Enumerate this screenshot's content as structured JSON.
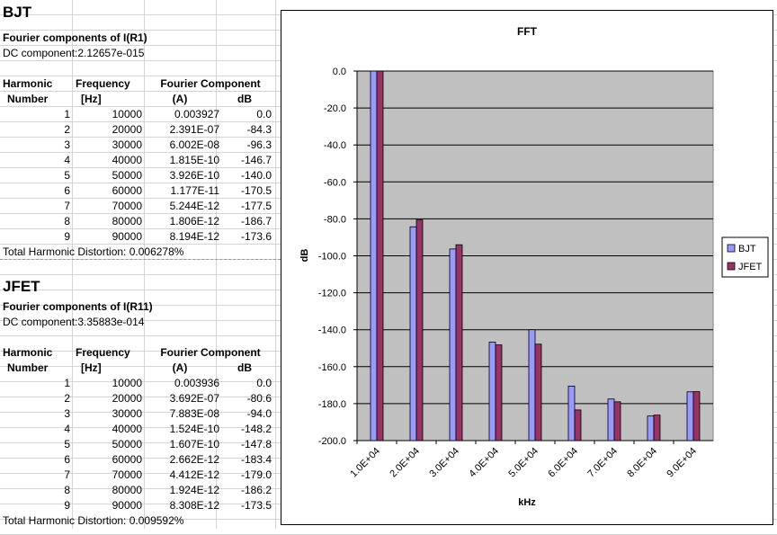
{
  "bjt": {
    "title": "BJT",
    "subtitle": "Fourier components of I(R1)",
    "dc": "DC component:2.12657e-015",
    "headers": [
      "Harmonic",
      "Frequency",
      "Fourier Component"
    ],
    "subheaders": [
      "Number",
      "[Hz]",
      "(A)",
      "dB"
    ],
    "rows": [
      [
        "1",
        "10000",
        "0.003927",
        "0.0"
      ],
      [
        "2",
        "20000",
        "2.391E-07",
        "-84.3"
      ],
      [
        "3",
        "30000",
        "6.002E-08",
        "-96.3"
      ],
      [
        "4",
        "40000",
        "1.815E-10",
        "-146.7"
      ],
      [
        "5",
        "50000",
        "3.926E-10",
        "-140.0"
      ],
      [
        "6",
        "60000",
        "1.177E-11",
        "-170.5"
      ],
      [
        "7",
        "70000",
        "5.244E-12",
        "-177.5"
      ],
      [
        "8",
        "80000",
        "1.806E-12",
        "-186.7"
      ],
      [
        "9",
        "90000",
        "8.194E-12",
        "-173.6"
      ]
    ],
    "thd": "Total Harmonic Distortion: 0.006278%"
  },
  "jfet": {
    "title": "JFET",
    "subtitle": "Fourier components of I(R11)",
    "dc": "DC component:3.35883e-014",
    "headers": [
      "Harmonic",
      "Frequency",
      "Fourier Component"
    ],
    "subheaders": [
      "Number",
      "[Hz]",
      "(A)",
      "dB"
    ],
    "rows": [
      [
        "1",
        "10000",
        "0.003936",
        "0.0"
      ],
      [
        "2",
        "20000",
        "3.692E-07",
        "-80.6"
      ],
      [
        "3",
        "30000",
        "7.883E-08",
        "-94.0"
      ],
      [
        "4",
        "40000",
        "1.524E-10",
        "-148.2"
      ],
      [
        "5",
        "50000",
        "1.607E-10",
        "-147.8"
      ],
      [
        "6",
        "60000",
        "2.662E-12",
        "-183.4"
      ],
      [
        "7",
        "70000",
        "4.412E-12",
        "-179.0"
      ],
      [
        "8",
        "80000",
        "1.924E-12",
        "-186.2"
      ],
      [
        "9",
        "90000",
        "8.308E-12",
        "-173.5"
      ]
    ],
    "thd": "Total Harmonic Distortion: 0.009592%"
  },
  "chart_data": {
    "type": "bar",
    "title": "FFT",
    "xlabel": "kHz",
    "ylabel": "dB",
    "categories": [
      "1.0E+04",
      "2.0E+04",
      "3.0E+04",
      "4.0E+04",
      "5.0E+04",
      "6.0E+04",
      "7.0E+04",
      "8.0E+04",
      "9.0E+04"
    ],
    "series": [
      {
        "name": "BJT",
        "values": [
          0.0,
          -84.3,
          -96.3,
          -146.7,
          -140.0,
          -170.5,
          -177.5,
          -186.7,
          -173.6
        ],
        "color": "#9999ff"
      },
      {
        "name": "JFET",
        "values": [
          0.0,
          -80.6,
          -94.0,
          -148.2,
          -147.8,
          -183.4,
          -179.0,
          -186.2,
          -173.5
        ],
        "color": "#993366"
      }
    ],
    "ylim": [
      -200,
      0
    ],
    "yticks": [
      "0.0",
      "-20.0",
      "-40.0",
      "-60.0",
      "-80.0",
      "-100.0",
      "-120.0",
      "-140.0",
      "-160.0",
      "-180.0",
      "-200.0"
    ],
    "ytick_values": [
      0,
      -20,
      -40,
      -60,
      -80,
      -100,
      -120,
      -140,
      -160,
      -180,
      -200
    ],
    "plot_background": "#c0c0c0",
    "grid": true,
    "legend": "right"
  }
}
